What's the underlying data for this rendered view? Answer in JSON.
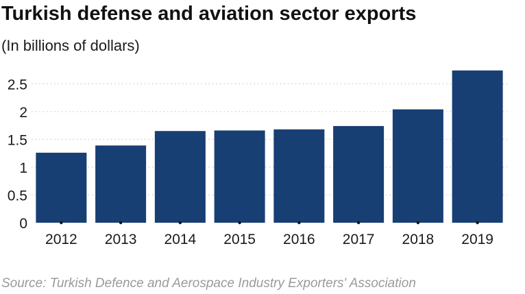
{
  "chart_data": {
    "type": "bar",
    "title": "Turkish defense and aviation sector exports",
    "subtitle": "(In billions of dollars)",
    "source": "Source: Turkish Defence and Aerospace Industry Exporters' Association",
    "categories": [
      "2012",
      "2013",
      "2014",
      "2015",
      "2016",
      "2017",
      "2018",
      "2019"
    ],
    "values": [
      1.26,
      1.39,
      1.65,
      1.66,
      1.68,
      1.74,
      2.04,
      2.74
    ],
    "y_ticks": [
      0,
      0.5,
      1,
      1.5,
      2,
      2.5
    ],
    "y_tick_labels": [
      "0",
      "0.5",
      "1",
      "1.5",
      "2",
      "2.5"
    ],
    "ylim": [
      0,
      2.75
    ],
    "xlabel": "",
    "ylabel": "",
    "grid": "horizontal dotted",
    "bar_color": "#173f73",
    "grid_color": "#c9c9c9"
  }
}
